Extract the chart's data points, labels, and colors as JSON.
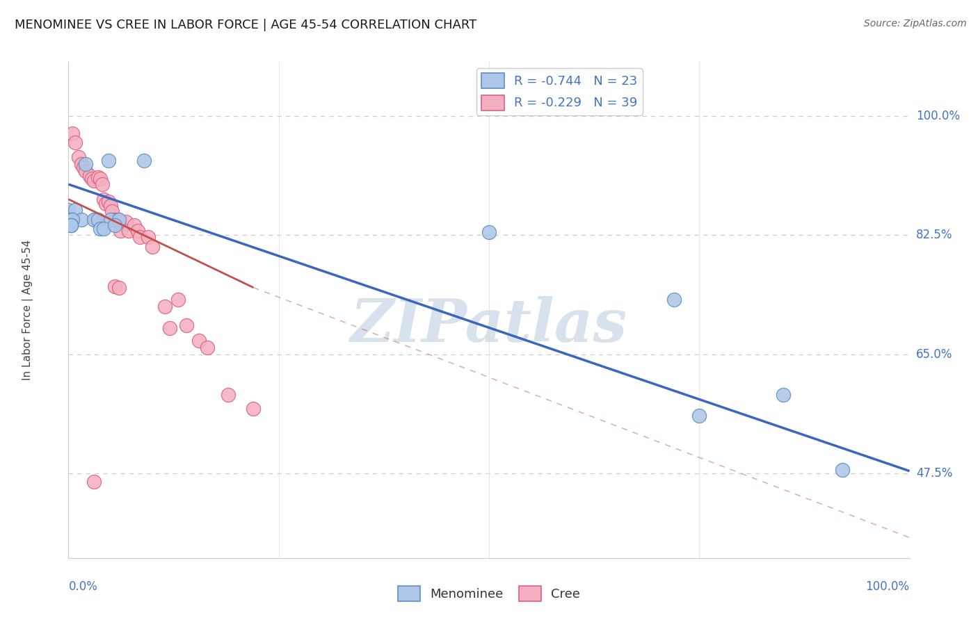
{
  "title": "MENOMINEE VS CREE IN LABOR FORCE | AGE 45-54 CORRELATION CHART",
  "source": "Source: ZipAtlas.com",
  "ylabel": "In Labor Force | Age 45-54",
  "ytick_labels": [
    "47.5%",
    "65.0%",
    "82.5%",
    "100.0%"
  ],
  "ytick_values": [
    0.475,
    0.65,
    0.825,
    1.0
  ],
  "xlim": [
    0.0,
    1.0
  ],
  "ylim": [
    0.35,
    1.08
  ],
  "menominee_color": "#aec6e8",
  "menominee_edge": "#5b8ec4",
  "cree_color": "#f4b0c0",
  "cree_edge": "#d96080",
  "trend_menominee_color": "#3a66c0",
  "trend_cree_color": "#c0504d",
  "watermark_color": "#ccd9e8",
  "grid_color": "#cccccc",
  "menominee_x": [
    0.02,
    0.048,
    0.09,
    0.0,
    0.008,
    0.015,
    0.03,
    0.035,
    0.05,
    0.06,
    0.003,
    0.005,
    0.003,
    0.003,
    0.003,
    0.038,
    0.042,
    0.055,
    0.5,
    0.72,
    0.75,
    0.85,
    0.92
  ],
  "menominee_y": [
    0.93,
    0.935,
    0.935,
    0.862,
    0.862,
    0.848,
    0.848,
    0.848,
    0.848,
    0.848,
    0.848,
    0.848,
    0.84,
    0.84,
    0.84,
    0.835,
    0.835,
    0.84,
    0.83,
    0.73,
    0.56,
    0.59,
    0.48
  ],
  "cree_x": [
    0.005,
    0.008,
    0.012,
    0.015,
    0.018,
    0.02,
    0.025,
    0.028,
    0.03,
    0.032,
    0.035,
    0.038,
    0.04,
    0.042,
    0.044,
    0.048,
    0.05,
    0.052,
    0.055,
    0.058,
    0.06,
    0.062,
    0.068,
    0.072,
    0.078,
    0.082,
    0.085,
    0.095,
    0.1,
    0.115,
    0.12,
    0.13,
    0.14,
    0.055,
    0.06,
    0.155,
    0.165,
    0.19,
    0.22,
    0.03
  ],
  "cree_y": [
    0.975,
    0.962,
    0.94,
    0.93,
    0.925,
    0.92,
    0.912,
    0.908,
    0.905,
    0.848,
    0.91,
    0.908,
    0.9,
    0.878,
    0.872,
    0.875,
    0.868,
    0.86,
    0.848,
    0.848,
    0.845,
    0.832,
    0.845,
    0.832,
    0.84,
    0.832,
    0.822,
    0.822,
    0.808,
    0.72,
    0.688,
    0.73,
    0.692,
    0.75,
    0.748,
    0.67,
    0.66,
    0.59,
    0.57,
    0.462
  ],
  "background_color": "#ffffff",
  "trend_men_x0": 0.0,
  "trend_men_x1": 1.0,
  "trend_men_y0": 0.9,
  "trend_men_y1": 0.478,
  "trend_cree_solid_x0": 0.0,
  "trend_cree_solid_x1": 0.22,
  "trend_cree_y0": 0.878,
  "trend_cree_y1": 0.748,
  "trend_cree_dash_x1": 1.0,
  "trend_cree_dash_y1": 0.38
}
